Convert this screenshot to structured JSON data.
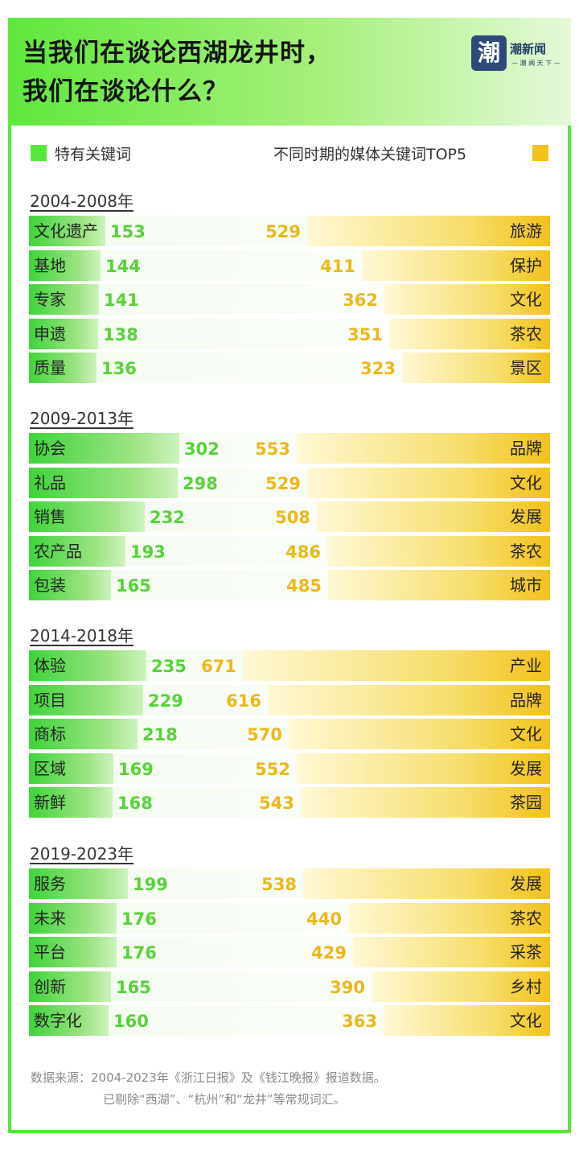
{
  "title": {
    "line1": "当我们在谈论西湖龙井时，",
    "line2": "我们在谈论什么？"
  },
  "brand": {
    "logo_char": "潮",
    "name": "潮新闻",
    "slogan": "— 潮 闻 天 下 —"
  },
  "legend": {
    "left": "特有关键词",
    "right": "不同时期的媒体关键词TOP5"
  },
  "colors": {
    "green": "#54e83a",
    "yellow": "#f2c21b",
    "green_text": "#57d23a",
    "yellow_text": "#ecb81a"
  },
  "chart_data": {
    "type": "bar",
    "title": "当我们在谈论西湖龙井时，我们在谈论什么？",
    "panels": [
      {
        "period": "2004-2008年",
        "unique": {
          "labels": [
            "文化遗产",
            "基地",
            "专家",
            "申遗",
            "质量"
          ],
          "values": [
            153,
            144,
            141,
            138,
            136
          ]
        },
        "top5": {
          "labels": [
            "旅游",
            "保护",
            "文化",
            "茶农",
            "景区"
          ],
          "values": [
            529,
            411,
            362,
            351,
            323
          ]
        }
      },
      {
        "period": "2009-2013年",
        "unique": {
          "labels": [
            "协会",
            "礼品",
            "销售",
            "农产品",
            "包装"
          ],
          "values": [
            302,
            298,
            232,
            193,
            165
          ]
        },
        "top5": {
          "labels": [
            "品牌",
            "文化",
            "发展",
            "茶农",
            "城市"
          ],
          "values": [
            553,
            529,
            508,
            486,
            485
          ]
        }
      },
      {
        "period": "2014-2018年",
        "unique": {
          "labels": [
            "体验",
            "项目",
            "商标",
            "区域",
            "新鲜"
          ],
          "values": [
            235,
            229,
            218,
            169,
            168
          ]
        },
        "top5": {
          "labels": [
            "产业",
            "品牌",
            "文化",
            "发展",
            "茶园"
          ],
          "values": [
            671,
            616,
            570,
            552,
            543
          ]
        }
      },
      {
        "period": "2019-2023年",
        "unique": {
          "labels": [
            "服务",
            "未来",
            "平台",
            "创新",
            "数字化"
          ],
          "values": [
            199,
            176,
            176,
            165,
            160
          ]
        },
        "top5": {
          "labels": [
            "发展",
            "茶农",
            "采茶",
            "乡村",
            "文化"
          ],
          "values": [
            538,
            440,
            429,
            390,
            363
          ]
        }
      }
    ]
  },
  "source": {
    "line1": "数据来源：2004-2023年《浙江日报》及《钱江晚报》报道数据。",
    "line2": "已剔除“西湖”、“杭州”和“龙井”等常规词汇。"
  }
}
